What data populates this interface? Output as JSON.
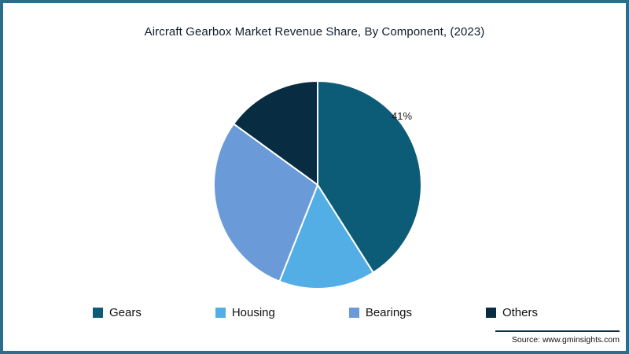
{
  "title": "Aircraft Gearbox Market Revenue Share, By Component, (2023)",
  "source_text": "Source: www.gminsights.com",
  "colors": {
    "frame_border": "#2b6d8c",
    "background": "#ffffff",
    "title_text": "#0d1d2c",
    "source_rule": "#0a2e45"
  },
  "chart_data": {
    "type": "pie",
    "title": "Aircraft Gearbox Market Revenue Share, By Component, (2023)",
    "categories": [
      "Gears",
      "Housing",
      "Bearings",
      "Others"
    ],
    "values": [
      41,
      15,
      29,
      15
    ],
    "unit": "%",
    "colors": [
      "#0d5c77",
      "#53aee6",
      "#6a9bd8",
      "#082c42"
    ],
    "start_angle": "12-oclock",
    "direction": "clockwise",
    "slice_border_color": "#ffffff",
    "data_labels": [
      {
        "category": "Gears",
        "text": "41%"
      }
    ],
    "legend_position": "bottom"
  }
}
